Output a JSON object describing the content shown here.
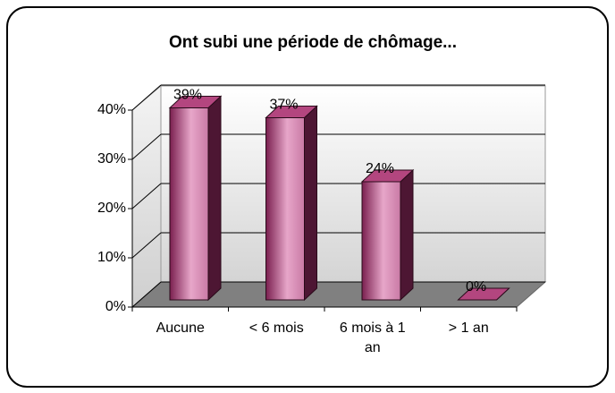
{
  "chart_data": {
    "type": "bar3d",
    "title": "Ont subi une période de chômage...",
    "categories": [
      "Aucune",
      "< 6 mois",
      "6 mois à 1 an",
      "> 1 an"
    ],
    "values": [
      39,
      37,
      24,
      0
    ],
    "value_labels": [
      "39%",
      "37%",
      "24%",
      "0%"
    ],
    "color": "#a8457a",
    "ylim": [
      0,
      40
    ],
    "yticks": [
      {
        "value": 0,
        "label": "0%"
      },
      {
        "value": 10,
        "label": "10%"
      },
      {
        "value": 20,
        "label": "20%"
      },
      {
        "value": 30,
        "label": "30%"
      },
      {
        "value": 40,
        "label": "40%"
      }
    ],
    "grid": true
  }
}
